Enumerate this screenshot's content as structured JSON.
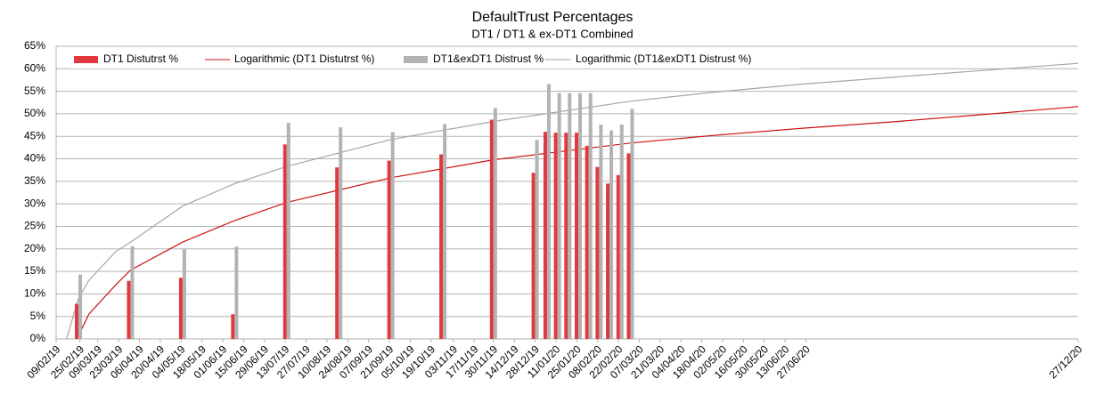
{
  "chart_data": {
    "type": "bar",
    "title": "DefaultTrust Percentages",
    "subtitle": "DT1 / DT1 & ex-DT1 Combined",
    "xlim": [
      "2019-02-09",
      "2020-12-27"
    ],
    "xticks": [
      {
        "value": "2019-02-09",
        "label": "09/02/19"
      },
      {
        "value": "2019-02-25",
        "label": "25/02/19"
      },
      {
        "value": "2019-03-09",
        "label": "09/03/19"
      },
      {
        "value": "2019-03-23",
        "label": "23/03/19"
      },
      {
        "value": "2019-04-06",
        "label": "06/04/19"
      },
      {
        "value": "2019-04-20",
        "label": "20/04/19"
      },
      {
        "value": "2019-05-04",
        "label": "04/05/19"
      },
      {
        "value": "2019-05-18",
        "label": "18/05/19"
      },
      {
        "value": "2019-06-01",
        "label": "01/06/19"
      },
      {
        "value": "2019-06-15",
        "label": "15/06/19"
      },
      {
        "value": "2019-06-29",
        "label": "29/06/19"
      },
      {
        "value": "2019-07-13",
        "label": "13/07/19"
      },
      {
        "value": "2019-07-27",
        "label": "27/07/19"
      },
      {
        "value": "2019-08-10",
        "label": "10/08/19"
      },
      {
        "value": "2019-08-24",
        "label": "24/08/19"
      },
      {
        "value": "2019-09-07",
        "label": "07/09/19"
      },
      {
        "value": "2019-09-21",
        "label": "21/09/19"
      },
      {
        "value": "2019-10-05",
        "label": "05/10/19"
      },
      {
        "value": "2019-10-19",
        "label": "19/10/19"
      },
      {
        "value": "2019-11-03",
        "label": "03/11/19"
      },
      {
        "value": "2019-11-17",
        "label": "17/11/19"
      },
      {
        "value": "2019-11-30",
        "label": "30/11/19"
      },
      {
        "value": "2019-12-14",
        "label": "14/12/19"
      },
      {
        "value": "2019-12-28",
        "label": "28/12/19"
      },
      {
        "value": "2020-01-11",
        "label": "11/01/20"
      },
      {
        "value": "2020-01-25",
        "label": "25/01/20"
      },
      {
        "value": "2020-02-08",
        "label": "08/02/20"
      },
      {
        "value": "2020-02-22",
        "label": "22/02/20"
      },
      {
        "value": "2020-03-07",
        "label": "07/03/20"
      },
      {
        "value": "2020-03-21",
        "label": "21/03/20"
      },
      {
        "value": "2020-04-04",
        "label": "04/04/20"
      },
      {
        "value": "2020-04-18",
        "label": "18/04/20"
      },
      {
        "value": "2020-05-02",
        "label": "02/05/20"
      },
      {
        "value": "2020-05-16",
        "label": "16/05/20"
      },
      {
        "value": "2020-05-30",
        "label": "30/05/20"
      },
      {
        "value": "2020-06-13",
        "label": "13/06/20"
      },
      {
        "value": "2020-06-27",
        "label": "27/06/20"
      },
      {
        "value": "2020-12-27",
        "label": "27/12/20"
      }
    ],
    "ylim": [
      0,
      65
    ],
    "yticks": [
      {
        "value": 0,
        "label": "0%"
      },
      {
        "value": 5,
        "label": "5%"
      },
      {
        "value": 10,
        "label": "10%"
      },
      {
        "value": 15,
        "label": "15%"
      },
      {
        "value": 20,
        "label": "20%"
      },
      {
        "value": 25,
        "label": "25%"
      },
      {
        "value": 30,
        "label": "30%"
      },
      {
        "value": 35,
        "label": "35%"
      },
      {
        "value": 40,
        "label": "40%"
      },
      {
        "value": 45,
        "label": "45%"
      },
      {
        "value": 50,
        "label": "50%"
      },
      {
        "value": 55,
        "label": "55%"
      },
      {
        "value": 60,
        "label": "60%"
      },
      {
        "value": 65,
        "label": "65%"
      }
    ],
    "grid": true,
    "legend": "top",
    "x": [
      "2019-02-24",
      "2019-03-31",
      "2019-05-05",
      "2019-06-09",
      "2019-07-14",
      "2019-08-18",
      "2019-09-22",
      "2019-10-27",
      "2019-11-30",
      "2019-12-28",
      "2020-01-05",
      "2020-01-12",
      "2020-01-19",
      "2020-01-26",
      "2020-02-02",
      "2020-02-09",
      "2020-02-16",
      "2020-02-23",
      "2020-03-01"
    ],
    "series": [
      {
        "name": "DT1 Distutrst %",
        "type": "bar",
        "color": "#e0393e",
        "values": [
          7.8,
          12.9,
          13.6,
          5.5,
          43.2,
          38.1,
          39.6,
          41.0,
          48.7,
          36.9,
          46.0,
          45.8,
          45.8,
          45.8,
          42.9,
          38.2,
          34.5,
          36.4,
          41.2
        ]
      },
      {
        "name": "Logarithmic (DT1 Distutrst %)",
        "type": "line",
        "color": "#cc1111",
        "x": [
          "2019-02-23",
          "2019-03-03",
          "2019-03-21",
          "2019-03-31",
          "2019-05-05",
          "2019-06-09",
          "2019-07-14",
          "2019-09-22",
          "2019-11-30",
          "2020-03-01",
          "2020-04-26",
          "2020-06-25",
          "2020-08-24",
          "2020-10-23",
          "2020-12-27"
        ],
        "values": [
          0,
          5.5,
          12,
          15.3,
          21.5,
          26.3,
          30.3,
          35.8,
          39.8,
          43.5,
          45.2,
          46.8,
          48.2,
          49.8,
          51.6
        ]
      },
      {
        "name": "DT1&exDT1 Distrust %",
        "type": "bar",
        "color": "#b3b3b3",
        "values": [
          14.3,
          20.6,
          19.9,
          20.5,
          48.0,
          47.0,
          45.9,
          47.7,
          51.3,
          44.2,
          56.6,
          54.6,
          54.6,
          54.6,
          54.6,
          47.6,
          46.3,
          47.6,
          51.1
        ]
      },
      {
        "name": "Logarithmic (DT1&exDT1 Distrust %)",
        "type": "line",
        "color": "#a6a6a6",
        "x": [
          "2019-02-16",
          "2019-02-24",
          "2019-03-03",
          "2019-03-21",
          "2019-03-31",
          "2019-05-05",
          "2019-06-09",
          "2019-07-14",
          "2019-09-22",
          "2019-11-30",
          "2020-03-01",
          "2020-04-26",
          "2020-06-25",
          "2020-08-24",
          "2020-10-23",
          "2020-12-27"
        ],
        "values": [
          0,
          9,
          13,
          19.4,
          21.5,
          29.5,
          34.5,
          38.3,
          44.3,
          48.3,
          52.8,
          54.8,
          56.6,
          58.1,
          59.6,
          61.2
        ]
      }
    ]
  }
}
